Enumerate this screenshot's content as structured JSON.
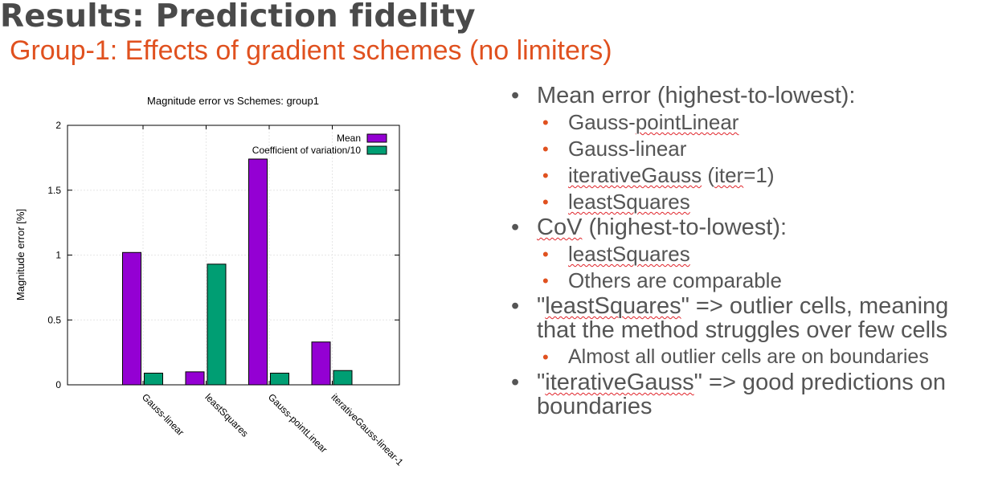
{
  "slide": {
    "title": "Results: Prediction fidelity",
    "subtitle": "Group-1: Effects of gradient schemes (no limiters)"
  },
  "chart_data": {
    "type": "bar",
    "title": "Magnitude error vs Schemes: group1",
    "xlabel": "",
    "ylabel": "Magnitude error [%]",
    "categories": [
      "Gauss-linear",
      "leastSquares",
      "Gauss-pointLinear",
      "iterativeGauss-linear-1"
    ],
    "series": [
      {
        "name": "Mean",
        "values": [
          1.02,
          0.1,
          1.74,
          0.33
        ],
        "color": "#9400d3"
      },
      {
        "name": "Coefficient of variation/10",
        "values": [
          0.09,
          0.93,
          0.09,
          0.11
        ],
        "color": "#009e73"
      }
    ],
    "ylim": [
      0,
      2
    ],
    "yticks": [
      "0",
      "0.5",
      "1",
      "1.5",
      "2"
    ],
    "grid": true,
    "legend_position": "top-right"
  },
  "bullets": {
    "mean_heading": "Mean error (highest-to-lowest):",
    "mean_items": {
      "i1_pre": "Gauss-",
      "i1_err": "pointLinear",
      "i2": "Gauss-linear",
      "i3_err1": "iterativeGauss",
      "i3_mid": " (",
      "i3_err2": "iter",
      "i3_post": "=1)",
      "i4_err": "leastSquares"
    },
    "cov_err": "CoV",
    "cov_rest": " (highest-to-lowest):",
    "cov_items": {
      "i1_err": "leastSquares",
      "i2": "Others are comparable"
    },
    "ls_pre": "\"",
    "ls_err": "leastSquares",
    "ls_post": "\" => outlier cells, meaning that the method struggles over few cells",
    "ls_sub": "Almost all outlier cells are on boundaries",
    "ig_pre": "\"",
    "ig_err": "iterativeGauss",
    "ig_post": "\" => good predictions on boundaries"
  }
}
